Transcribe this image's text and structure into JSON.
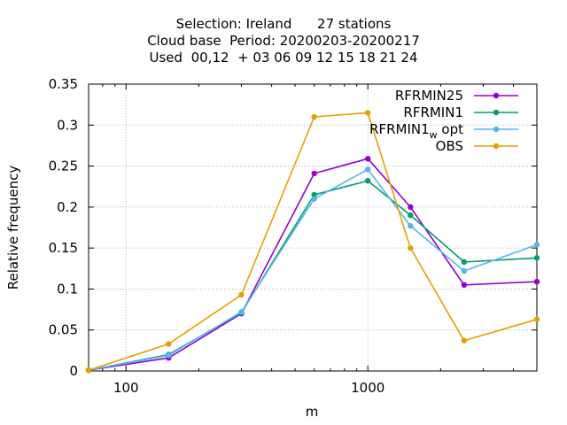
{
  "title_lines": [
    "Selection: Ireland      27 stations",
    "Cloud base  Period: 20200203-20200217",
    "Used  00,12  + 03 06 09 12 15 18 21 24"
  ],
  "chart_data": {
    "type": "line",
    "xlabel": "m",
    "ylabel": "Relative frequency",
    "x_scale": "log",
    "xlim": [
      70,
      5000
    ],
    "ylim": [
      0,
      0.35
    ],
    "x_ticks": [
      100,
      1000
    ],
    "x_tick_labels": [
      "100",
      "1000"
    ],
    "y_ticks": [
      0,
      0.05,
      0.1,
      0.15,
      0.2,
      0.25,
      0.3,
      0.35
    ],
    "y_tick_labels": [
      "0",
      "0.05",
      "0.1",
      "0.15",
      "0.2",
      "0.25",
      "0.3",
      "0.35"
    ],
    "grid": true,
    "legend_position": "top-right",
    "x": [
      70,
      150,
      300,
      600,
      1000,
      1500,
      2500,
      5000
    ],
    "series": [
      {
        "name": "RFRMIN25",
        "name_main": "RFRMIN25",
        "name_sub": "",
        "name_tail": "",
        "color": "#9400d3",
        "values": [
          0.001,
          0.016,
          0.07,
          0.241,
          0.259,
          0.2,
          0.105,
          0.109
        ]
      },
      {
        "name": "RFRMIN1",
        "name_main": "RFRMIN1",
        "name_sub": "",
        "name_tail": "",
        "color": "#009e73",
        "values": [
          0.001,
          0.02,
          0.071,
          0.215,
          0.232,
          0.19,
          0.133,
          0.138
        ]
      },
      {
        "name": "RFRMIN1_w opt",
        "name_main": "RFRMIN1",
        "name_sub": "w",
        "name_tail": " opt",
        "color": "#56b4e9",
        "values": [
          0.001,
          0.019,
          0.072,
          0.21,
          0.246,
          0.177,
          0.122,
          0.154
        ]
      },
      {
        "name": "OBS",
        "name_main": "OBS",
        "name_sub": "",
        "name_tail": "",
        "color": "#e69f00",
        "values": [
          0.001,
          0.033,
          0.093,
          0.31,
          0.315,
          0.15,
          0.037,
          0.063
        ]
      }
    ]
  }
}
